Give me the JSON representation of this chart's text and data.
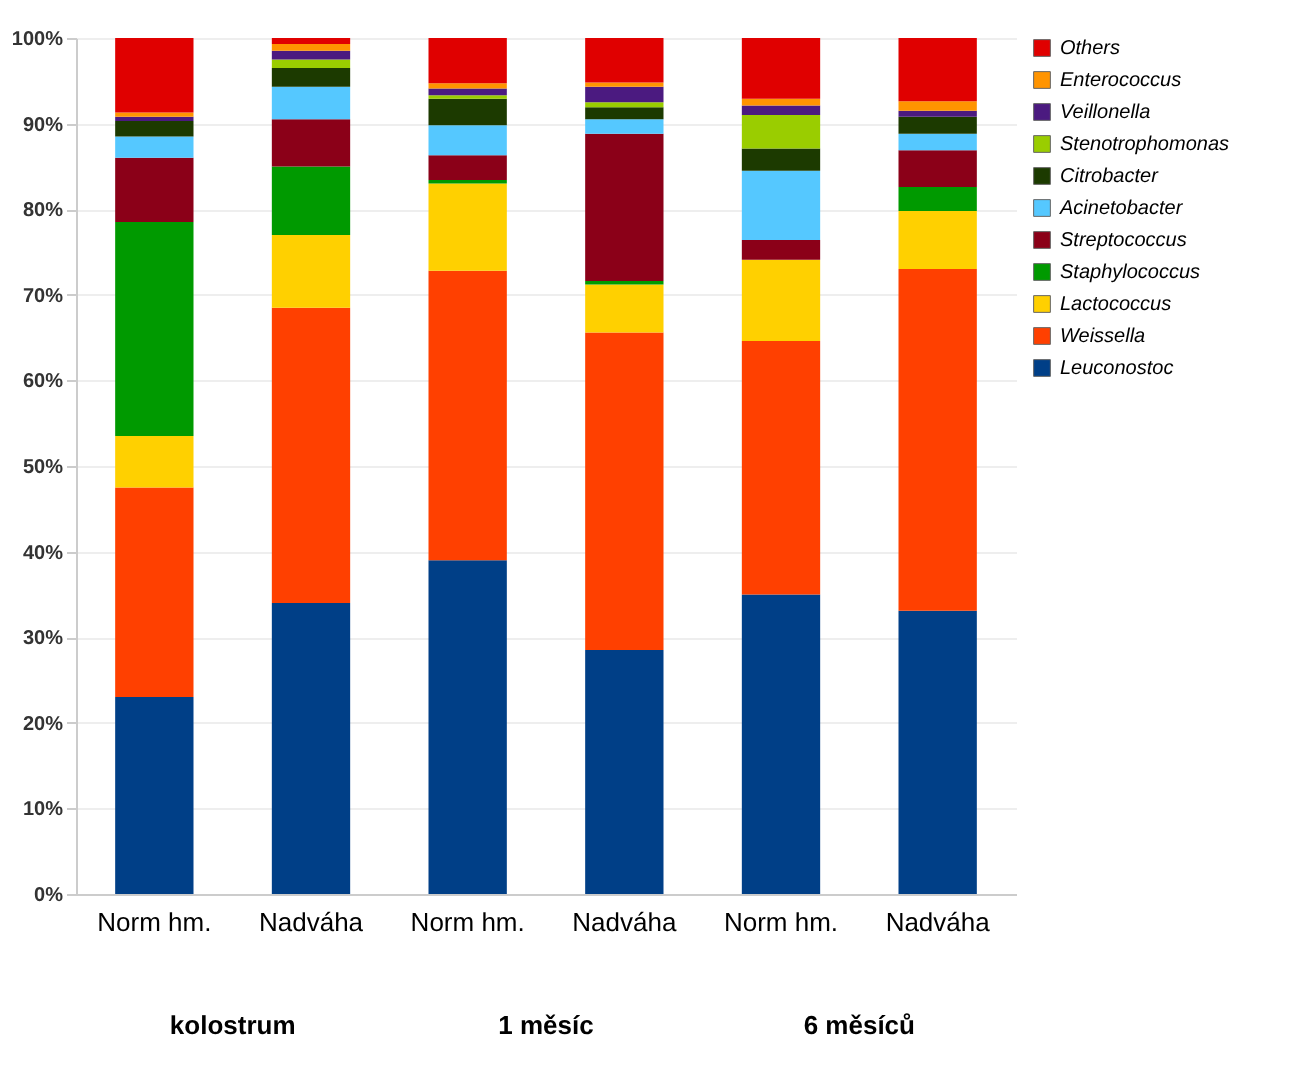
{
  "chart_data": {
    "type": "bar",
    "stacked": true,
    "categories": [
      "Norm hm.",
      "Nadváha",
      "Norm hm.",
      "Nadváha",
      "Norm hm.",
      "Nadváha"
    ],
    "series": [
      {
        "name": "Leuconostoc",
        "color": "#003f87",
        "values": [
          23,
          34,
          39,
          28.5,
          35,
          33.1
        ]
      },
      {
        "name": "Weissella",
        "color": "#ff4000",
        "values": [
          24.5,
          34.5,
          33.8,
          37.1,
          29.6,
          39.9
        ]
      },
      {
        "name": "Lactococcus",
        "color": "#ffd000",
        "values": [
          6,
          8.5,
          10.2,
          5.6,
          9.5,
          6.8
        ]
      },
      {
        "name": "Staphylococcus",
        "color": "#009a00",
        "values": [
          25,
          8,
          0.4,
          0.4,
          0,
          2.8
        ]
      },
      {
        "name": "Streptococcus",
        "color": "#8b0018",
        "values": [
          7.5,
          5.5,
          2.9,
          17.2,
          2.3,
          4.3
        ]
      },
      {
        "name": "Acinetobacter",
        "color": "#55c8ff",
        "values": [
          2.5,
          3.8,
          3.5,
          1.7,
          8.1,
          1.9
        ]
      },
      {
        "name": "Citrobacter",
        "color": "#1c3a00",
        "values": [
          1.8,
          2.2,
          3.1,
          1.4,
          2.6,
          2
        ]
      },
      {
        "name": "Stenotrophomonas",
        "color": "#9acd00",
        "values": [
          0,
          1,
          0.4,
          0.6,
          3.9,
          0
        ]
      },
      {
        "name": "Veillonella",
        "color": "#4b1a80",
        "values": [
          0.5,
          1,
          0.8,
          1.8,
          1.1,
          0.7
        ]
      },
      {
        "name": "Enterococcus",
        "color": "#ff9400",
        "values": [
          0.5,
          0.8,
          0.6,
          0.5,
          0.8,
          1.1
        ]
      },
      {
        "name": "Others",
        "color": "#e00000",
        "values": [
          8.7,
          0.7,
          5.3,
          5.2,
          7.1,
          7.4
        ]
      }
    ],
    "ylim": [
      0,
      100
    ],
    "yticks": [
      {
        "value": 0,
        "label": "0%"
      },
      {
        "value": 10,
        "label": "10%"
      },
      {
        "value": 20,
        "label": "20%"
      },
      {
        "value": 30,
        "label": "30%"
      },
      {
        "value": 40,
        "label": "40%"
      },
      {
        "value": 50,
        "label": "50%"
      },
      {
        "value": 60,
        "label": "60%"
      },
      {
        "value": 70,
        "label": "70%"
      },
      {
        "value": 80,
        "label": "80%"
      },
      {
        "value": 90,
        "label": "90%"
      },
      {
        "value": 100,
        "label": "100%"
      }
    ],
    "grid": "y",
    "legend": "right",
    "annotations": [
      "kolostrum",
      "1 měsíc",
      "6 měsíců"
    ]
  }
}
